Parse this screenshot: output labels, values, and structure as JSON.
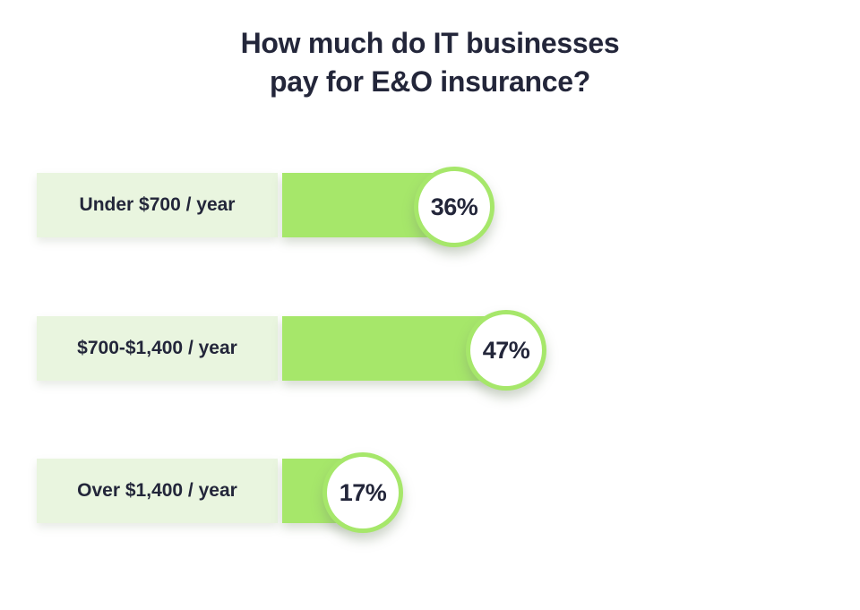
{
  "title": {
    "line1": "How much do IT businesses",
    "line2": "pay for E&O insurance?"
  },
  "colors": {
    "bar": "#a6e76a",
    "label_background": "#e9f5df",
    "text": "#23263a",
    "background": "#ffffff"
  },
  "chart_data": {
    "type": "bar",
    "orientation": "horizontal",
    "title": "How much do IT businesses pay for E&O insurance?",
    "categories": [
      "Under $700 / year",
      "$700-$1,400 / year",
      "Over $1,400 / year"
    ],
    "values": [
      36,
      47,
      17
    ],
    "value_labels": [
      "36%",
      "47%",
      "17%"
    ],
    "unit": "percent",
    "xlim": [
      0,
      100
    ],
    "grid": false,
    "legend": false
  }
}
